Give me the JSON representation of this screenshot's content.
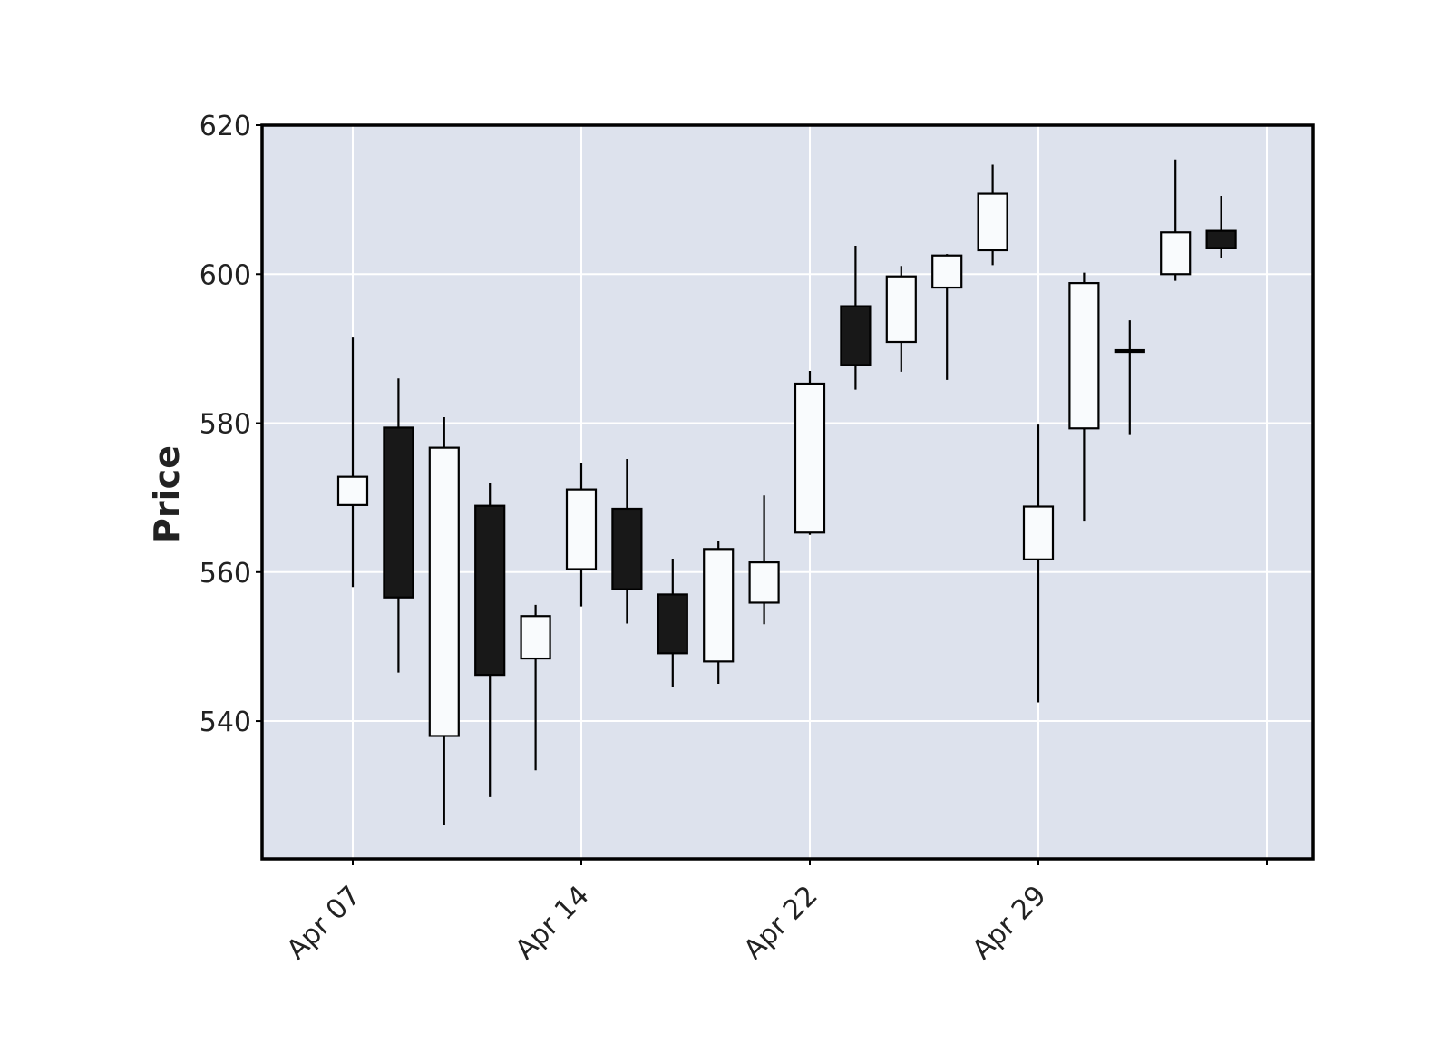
{
  "chart_data": {
    "type": "candlestick",
    "title": "",
    "xlabel": "",
    "ylabel": "Price",
    "ylim": [
      521.5,
      620
    ],
    "yticks": [
      540,
      560,
      580,
      600,
      620
    ],
    "ytick_labels": [
      "540",
      "560",
      "580",
      "600",
      "620"
    ],
    "xtick_labels": [
      "Apr 07",
      "Apr 14",
      "Apr 22",
      "Apr 29"
    ],
    "xtick_positions": [
      0,
      5,
      10,
      15,
      20
    ],
    "grid": true,
    "colors": {
      "background": "#dde2ed",
      "grid": "#ffffff",
      "up_fill": "#f9fbfd",
      "down_fill": "#181818",
      "edge": "#000000"
    },
    "candles": [
      {
        "open": 569.0,
        "high": 591.5,
        "low": 558.0,
        "close": 572.8
      },
      {
        "open": 579.4,
        "high": 586.0,
        "low": 546.5,
        "close": 556.6
      },
      {
        "open": 538.0,
        "high": 580.8,
        "low": 526.0,
        "close": 576.7
      },
      {
        "open": 568.9,
        "high": 572.0,
        "low": 529.8,
        "close": 546.2
      },
      {
        "open": 548.4,
        "high": 555.6,
        "low": 533.4,
        "close": 554.1
      },
      {
        "open": 560.4,
        "high": 574.7,
        "low": 555.4,
        "close": 571.1
      },
      {
        "open": 568.5,
        "high": 575.2,
        "low": 553.1,
        "close": 557.7
      },
      {
        "open": 557.0,
        "high": 561.8,
        "low": 544.6,
        "close": 549.1
      },
      {
        "open": 548.0,
        "high": 564.2,
        "low": 545.0,
        "close": 563.1
      },
      {
        "open": 555.9,
        "high": 570.3,
        "low": 553.0,
        "close": 561.3
      },
      {
        "open": 565.3,
        "high": 587.0,
        "low": 565.0,
        "close": 585.3
      },
      {
        "open": 595.7,
        "high": 603.8,
        "low": 584.5,
        "close": 587.8
      },
      {
        "open": 590.9,
        "high": 601.1,
        "low": 586.9,
        "close": 599.7
      },
      {
        "open": 598.2,
        "high": 602.7,
        "low": 585.8,
        "close": 602.5
      },
      {
        "open": 603.2,
        "high": 614.7,
        "low": 601.2,
        "close": 610.8
      },
      {
        "open": 561.7,
        "high": 579.8,
        "low": 542.5,
        "close": 568.8
      },
      {
        "open": 579.3,
        "high": 600.2,
        "low": 566.9,
        "close": 598.8
      },
      {
        "open": 589.8,
        "high": 593.8,
        "low": 578.4,
        "close": 589.7
      },
      {
        "open": 600.0,
        "high": 615.4,
        "low": 599.1,
        "close": 605.6
      },
      {
        "open": 605.8,
        "high": 610.5,
        "low": 602.1,
        "close": 603.5
      }
    ]
  }
}
